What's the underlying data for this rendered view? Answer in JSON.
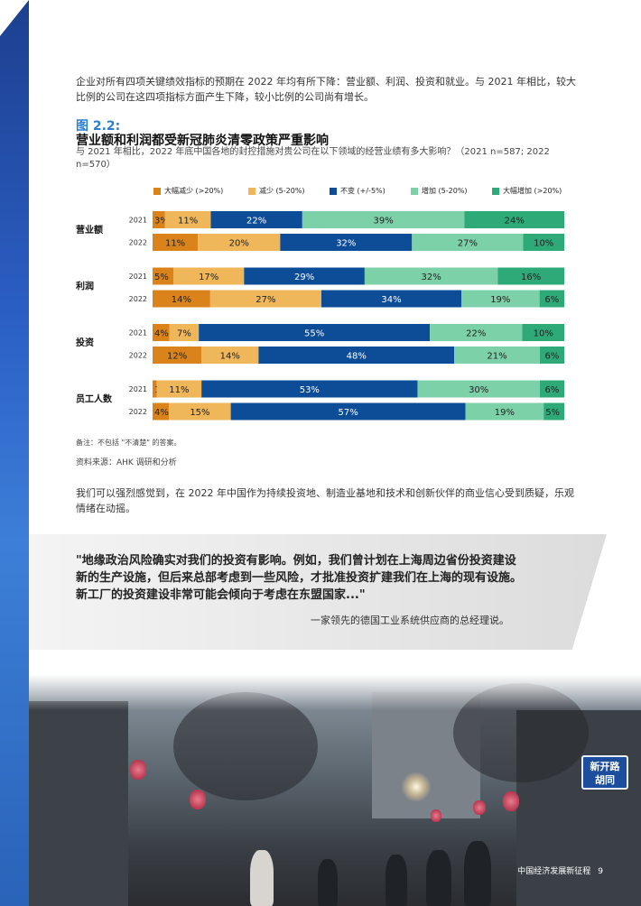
{
  "intro_text": "企业对所有四项关键绩效指标的预期在 2022 年均有所下降：营业额、利润、投资和就业。与 2021 年相比，较大比例的公司在这四项指标方面产生下降，较小比例的公司尚有增长。",
  "figure": {
    "label": "图 2.2:",
    "title": "营业额和利润都受新冠肺炎清零政策严重影响",
    "subtitle": "与 2021 年相比，2022 年底中国各地的封控措施对贵公司在以下领域的经营业绩有多大影响？（2021 n=587; 2022 n=570）"
  },
  "chart_data": {
    "type": "bar",
    "orientation": "horizontal",
    "stacked": true,
    "percent": true,
    "legend_position": "top",
    "categories": [
      "营业额",
      "利润",
      "投资",
      "员工人数"
    ],
    "years": [
      "2021",
      "2022"
    ],
    "series": [
      {
        "name": "大幅减少 (>20%)",
        "color": "#d9831a",
        "label_color": "#222222",
        "values": {
          "营业额": [
            3,
            11
          ],
          "利润": [
            5,
            14
          ],
          "投资": [
            4,
            12
          ],
          "员工人数": [
            1,
            4
          ]
        }
      },
      {
        "name": "减少 (5-20%)",
        "color": "#efb65a",
        "label_color": "#222222",
        "values": {
          "营业额": [
            11,
            20
          ],
          "利润": [
            17,
            27
          ],
          "投资": [
            7,
            14
          ],
          "员工人数": [
            11,
            15
          ]
        }
      },
      {
        "name": "不变 (+/-5%)",
        "color": "#0d4c96",
        "label_color": "#ffffff",
        "values": {
          "营业额": [
            22,
            32
          ],
          "利润": [
            29,
            34
          ],
          "投资": [
            55,
            48
          ],
          "员工人数": [
            53,
            57
          ]
        }
      },
      {
        "name": "增加 (5-20%)",
        "color": "#7dd1a8",
        "label_color": "#222222",
        "values": {
          "营业额": [
            39,
            27
          ],
          "利润": [
            32,
            19
          ],
          "投资": [
            22,
            21
          ],
          "员工人数": [
            30,
            19
          ]
        }
      },
      {
        "name": "大幅增加 (>20%)",
        "color": "#2daa78",
        "label_color": "#222222",
        "values": {
          "营业额": [
            24,
            10
          ],
          "利润": [
            16,
            6
          ],
          "投资": [
            10,
            6
          ],
          "员工人数": [
            6,
            5
          ]
        }
      }
    ]
  },
  "note": "备注：不包括 \"不清楚\" 的答案。",
  "source": "资料来源：AHK 调研和分析",
  "paragraph2": "我们可以强烈感觉到，在 2022 年中国作为持续投资地、制造业基地和技术和创新伙伴的商业信心受到质疑，乐观情绪在动摇。",
  "quote": {
    "text": "\"地缘政治风险确实对我们的投资有影响。例如，我们曾计划在上海周边省份投资建设新的生产设施，但后来总部考虑到一些风险，才批准投资扩建我们在上海的现有设施。新工厂的投资建设非常可能会倾向于考虑在东盟国家...\"",
    "attribution": "一家领先的德国工业系统供应商的总经理说。"
  },
  "photo": {
    "street_sign": "新开路\n胡同"
  },
  "footer": {
    "title": "中国经济发展新征程",
    "page": "9"
  }
}
